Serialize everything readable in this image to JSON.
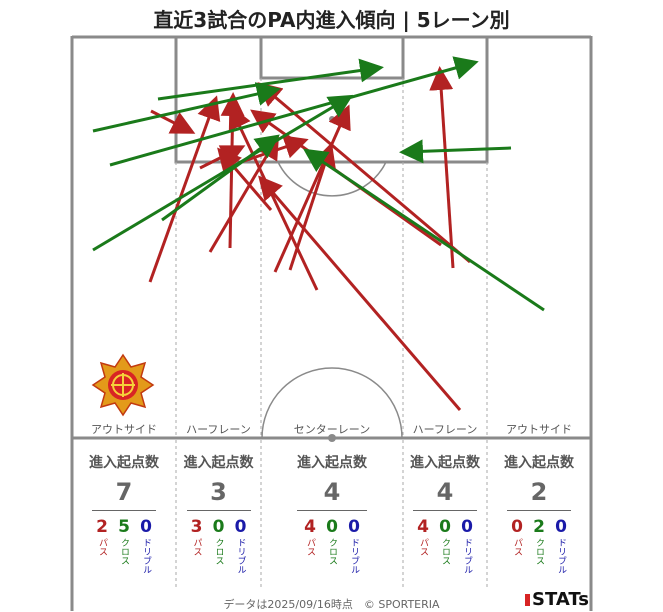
{
  "title": "直近3試合のPA内進入傾向 | 5レーン別",
  "lanes": [
    {
      "label": "アウトサイド",
      "header": "進入起点数",
      "total": "7",
      "pass": "2",
      "cross": "5",
      "dribble": "0"
    },
    {
      "label": "ハーフレーン",
      "header": "進入起点数",
      "total": "3",
      "pass": "3",
      "cross": "0",
      "dribble": "0"
    },
    {
      "label": "センターレーン",
      "header": "進入起点数",
      "total": "4",
      "pass": "4",
      "cross": "0",
      "dribble": "0"
    },
    {
      "label": "ハーフレーン",
      "header": "進入起点数",
      "total": "4",
      "pass": "4",
      "cross": "0",
      "dribble": "0"
    },
    {
      "label": "アウトサイド",
      "header": "進入起点数",
      "total": "2",
      "pass": "0",
      "cross": "2",
      "dribble": "0"
    }
  ],
  "type_labels": {
    "pass": "パス",
    "cross": "クロス",
    "dribble": "ドリブル"
  },
  "colors": {
    "pass": "#b22222",
    "cross": "#1a7a1a",
    "dribble": "#1a1aa8",
    "pitch_line": "#8a8a8a"
  },
  "footer": "データは2025/09/16時点　© SPORTERIA",
  "brand": "STATs",
  "crest_icon": "club-crest-icon"
}
